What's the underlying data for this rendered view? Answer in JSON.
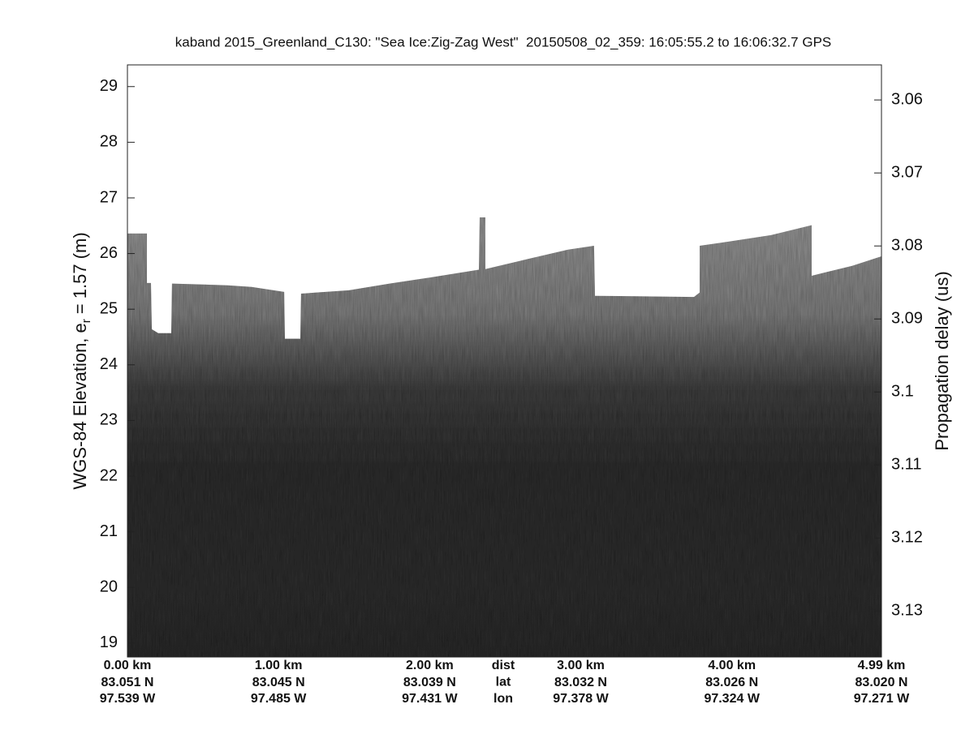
{
  "chart_data": {
    "type": "echogram",
    "title": "kaband 2015_Greenland_C130: \"Sea Ice:Zig-Zag West\"  20150508_02_359: 16:05:55.2 to 16:06:32.7 GPS",
    "ylabel": {
      "text": "WGS-84 Elevation, e",
      "subscript": "r",
      "suffix": "= 1.57 (m)"
    },
    "y2label": "Propagation delay (us)",
    "x": [
      0.0,
      0.129,
      0.129,
      0.156,
      0.161,
      0.204,
      0.29,
      0.295,
      0.661,
      0.822,
      1.037,
      1.042,
      1.144,
      1.149,
      1.466,
      1.735,
      2.003,
      2.326,
      2.331,
      2.369,
      2.369,
      2.648,
      2.916,
      3.088,
      3.094,
      3.749,
      3.787,
      3.787,
      3.991,
      4.259,
      4.528,
      4.528,
      4.796,
      4.99
    ],
    "values": [
      26.36,
      26.36,
      25.47,
      25.47,
      24.64,
      24.57,
      24.57,
      25.46,
      25.43,
      25.4,
      25.31,
      24.47,
      24.47,
      25.28,
      25.34,
      25.46,
      25.57,
      25.71,
      26.65,
      26.65,
      25.72,
      25.9,
      26.07,
      26.14,
      25.24,
      25.22,
      25.3,
      26.14,
      26.22,
      26.33,
      26.51,
      25.6,
      25.78,
      25.95
    ],
    "xlim": [
      0,
      4.99
    ],
    "xticks": [
      {
        "value": 0,
        "label": "0.00 km"
      },
      {
        "value": 1,
        "label": "1.00 km"
      },
      {
        "value": 2,
        "label": "2.00 km"
      },
      {
        "value": 3,
        "label": "3.00 km"
      },
      {
        "value": 4,
        "label": "4.00 km"
      },
      {
        "value": 4.99,
        "label": "4.99 km"
      }
    ],
    "lat_labels": [
      "83.051 N",
      "83.045 N",
      "83.039 N",
      "83.032 N",
      "83.026 N",
      "83.020 N"
    ],
    "lon_labels": [
      "97.539 W",
      "97.485 W",
      "97.431 W",
      "97.378 W",
      "97.324 W",
      "97.271 W"
    ],
    "row_labels": [
      "dist",
      "lat",
      "lon"
    ],
    "ylim": [
      18.75,
      29.39
    ],
    "yticks": [
      19,
      20,
      21,
      22,
      23,
      24,
      25,
      26,
      27,
      28,
      29
    ],
    "y2lim": [
      3.0552,
      3.1363
    ],
    "y2ticks": [
      3.06,
      3.07,
      3.08,
      3.09,
      3.1,
      3.11,
      3.12,
      3.13
    ]
  }
}
